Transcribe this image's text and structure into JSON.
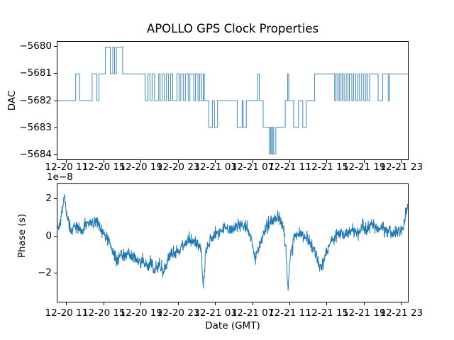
{
  "figure": {
    "title": "APOLLO GPS Clock Properties",
    "background_color": "#ffffff",
    "line_color": "#1f77b4",
    "axis_color": "#000000"
  },
  "chart_data": [
    {
      "type": "line",
      "style": "step",
      "subplot": "top",
      "title": "APOLLO GPS Clock Properties",
      "ylabel": "DAC",
      "ytick_labels": [
        "−5680",
        "−5681",
        "−5682",
        "−5683",
        "−5684"
      ],
      "ytick_values": [
        -5680,
        -5681,
        -5682,
        -5683,
        -5684
      ],
      "ylim": [
        -5684.2,
        -5679.8
      ],
      "grid": false,
      "legend": "none",
      "xtick_labels": [
        "12-20 11",
        "12-20 15",
        "12-20 19",
        "12-20 23",
        "12-21 03",
        "12-21 07",
        "12-21 11",
        "12-21 15",
        "12-21 19",
        "12-21 23"
      ],
      "steps_x_fraction_value": [
        [
          0.0,
          -5682
        ],
        [
          0.052,
          -5681
        ],
        [
          0.063,
          -5682
        ],
        [
          0.099,
          -5681
        ],
        [
          0.112,
          -5682
        ],
        [
          0.118,
          -5681
        ],
        [
          0.137,
          -5680
        ],
        [
          0.151,
          -5681
        ],
        [
          0.158,
          -5680
        ],
        [
          0.163,
          -5681
        ],
        [
          0.168,
          -5680
        ],
        [
          0.186,
          -5681
        ],
        [
          0.25,
          -5682
        ],
        [
          0.258,
          -5681
        ],
        [
          0.264,
          -5682
        ],
        [
          0.27,
          -5681
        ],
        [
          0.277,
          -5682
        ],
        [
          0.289,
          -5681
        ],
        [
          0.293,
          -5682
        ],
        [
          0.299,
          -5681
        ],
        [
          0.305,
          -5682
        ],
        [
          0.311,
          -5681
        ],
        [
          0.317,
          -5682
        ],
        [
          0.323,
          -5681
        ],
        [
          0.329,
          -5682
        ],
        [
          0.341,
          -5681
        ],
        [
          0.347,
          -5682
        ],
        [
          0.352,
          -5681
        ],
        [
          0.359,
          -5682
        ],
        [
          0.365,
          -5681
        ],
        [
          0.373,
          -5682
        ],
        [
          0.378,
          -5681
        ],
        [
          0.389,
          -5682
        ],
        [
          0.394,
          -5681
        ],
        [
          0.401,
          -5682
        ],
        [
          0.406,
          -5681
        ],
        [
          0.411,
          -5682
        ],
        [
          0.416,
          -5681
        ],
        [
          0.419,
          -5682
        ],
        [
          0.432,
          -5683
        ],
        [
          0.442,
          -5682
        ],
        [
          0.448,
          -5683
        ],
        [
          0.457,
          -5682
        ],
        [
          0.513,
          -5683
        ],
        [
          0.527,
          -5682
        ],
        [
          0.53,
          -5683
        ],
        [
          0.539,
          -5682
        ],
        [
          0.571,
          -5681
        ],
        [
          0.576,
          -5682
        ],
        [
          0.587,
          -5683
        ],
        [
          0.605,
          -5684
        ],
        [
          0.608,
          -5683
        ],
        [
          0.611,
          -5684
        ],
        [
          0.614,
          -5683
        ],
        [
          0.617,
          -5684
        ],
        [
          0.623,
          -5683
        ],
        [
          0.65,
          -5682
        ],
        [
          0.657,
          -5681
        ],
        [
          0.66,
          -5682
        ],
        [
          0.674,
          -5683
        ],
        [
          0.688,
          -5682
        ],
        [
          0.7,
          -5683
        ],
        [
          0.71,
          -5682
        ],
        [
          0.734,
          -5681
        ],
        [
          0.791,
          -5682
        ],
        [
          0.795,
          -5681
        ],
        [
          0.8,
          -5682
        ],
        [
          0.804,
          -5681
        ],
        [
          0.809,
          -5682
        ],
        [
          0.813,
          -5681
        ],
        [
          0.818,
          -5682
        ],
        [
          0.824,
          -5681
        ],
        [
          0.829,
          -5682
        ],
        [
          0.833,
          -5681
        ],
        [
          0.84,
          -5682
        ],
        [
          0.845,
          -5681
        ],
        [
          0.851,
          -5682
        ],
        [
          0.857,
          -5681
        ],
        [
          0.862,
          -5682
        ],
        [
          0.868,
          -5681
        ],
        [
          0.874,
          -5682
        ],
        [
          0.88,
          -5681
        ],
        [
          0.885,
          -5682
        ],
        [
          0.891,
          -5681
        ],
        [
          0.915,
          -5682
        ],
        [
          0.928,
          -5681
        ],
        [
          0.944,
          -5682
        ],
        [
          0.948,
          -5681
        ]
      ]
    },
    {
      "type": "line",
      "style": "noisy",
      "subplot": "bottom",
      "ylabel": "Phase (s)",
      "xlabel": "Date (GMT)",
      "offset_text": "1e−8",
      "ytick_labels": [
        "2",
        "0",
        "−2"
      ],
      "ytick_values": [
        2,
        0,
        -2
      ],
      "ylim": [
        -3.59,
        2.84
      ],
      "grid": false,
      "legend": "none",
      "xtick_labels": [
        "12-20 11",
        "12-20 15",
        "12-20 19",
        "12-20 23",
        "12-21 03",
        "12-21 07",
        "12-21 11",
        "12-21 15",
        "12-21 19",
        "12-21 23"
      ],
      "units": "1e-8 s",
      "keypoints_x_fraction_value": [
        [
          0.0,
          0.4
        ],
        [
          0.01,
          0.9
        ],
        [
          0.02,
          2.3
        ],
        [
          0.028,
          0.9
        ],
        [
          0.04,
          0.3
        ],
        [
          0.055,
          0.55
        ],
        [
          0.07,
          0.25
        ],
        [
          0.085,
          0.65
        ],
        [
          0.1,
          0.7
        ],
        [
          0.115,
          0.85
        ],
        [
          0.125,
          0.3
        ],
        [
          0.14,
          -0.1
        ],
        [
          0.15,
          -0.45
        ],
        [
          0.16,
          -1.0
        ],
        [
          0.17,
          -1.35
        ],
        [
          0.18,
          -0.9
        ],
        [
          0.19,
          -1.1
        ],
        [
          0.2,
          -0.85
        ],
        [
          0.21,
          -1.2
        ],
        [
          0.22,
          -1.05
        ],
        [
          0.232,
          -1.5
        ],
        [
          0.245,
          -1.3
        ],
        [
          0.258,
          -1.75
        ],
        [
          0.268,
          -1.4
        ],
        [
          0.278,
          -1.9
        ],
        [
          0.29,
          -1.5
        ],
        [
          0.302,
          -2.05
        ],
        [
          0.312,
          -1.35
        ],
        [
          0.325,
          -1.0
        ],
        [
          0.34,
          -0.85
        ],
        [
          0.355,
          -0.55
        ],
        [
          0.37,
          -0.35
        ],
        [
          0.385,
          -0.15
        ],
        [
          0.398,
          -0.45
        ],
        [
          0.41,
          -0.7
        ],
        [
          0.4165,
          -2.9
        ],
        [
          0.423,
          -0.9
        ],
        [
          0.435,
          -0.3
        ],
        [
          0.45,
          0.05
        ],
        [
          0.465,
          0.3
        ],
        [
          0.48,
          0.45
        ],
        [
          0.495,
          0.3
        ],
        [
          0.51,
          0.5
        ],
        [
          0.525,
          0.65
        ],
        [
          0.54,
          0.4
        ],
        [
          0.553,
          -0.2
        ],
        [
          0.565,
          -1.25
        ],
        [
          0.578,
          -0.35
        ],
        [
          0.59,
          0.3
        ],
        [
          0.605,
          0.7
        ],
        [
          0.62,
          0.95
        ],
        [
          0.632,
          1.05
        ],
        [
          0.645,
          0.4
        ],
        [
          0.652,
          -0.8
        ],
        [
          0.6575,
          -2.95
        ],
        [
          0.664,
          -1.1
        ],
        [
          0.675,
          -0.1
        ],
        [
          0.69,
          0.15
        ],
        [
          0.705,
          0.1
        ],
        [
          0.718,
          -0.25
        ],
        [
          0.73,
          -0.7
        ],
        [
          0.742,
          -1.35
        ],
        [
          0.752,
          -1.8
        ],
        [
          0.763,
          -1.1
        ],
        [
          0.775,
          -0.5
        ],
        [
          0.788,
          -0.15
        ],
        [
          0.8,
          0.1
        ],
        [
          0.815,
          0.2
        ],
        [
          0.83,
          0.15
        ],
        [
          0.845,
          0.35
        ],
        [
          0.858,
          0.2
        ],
        [
          0.87,
          0.45
        ],
        [
          0.882,
          0.3
        ],
        [
          0.895,
          0.8
        ],
        [
          0.905,
          0.55
        ],
        [
          0.915,
          0.35
        ],
        [
          0.925,
          0.5
        ],
        [
          0.935,
          0.25
        ],
        [
          0.945,
          0.35
        ],
        [
          0.955,
          0.15
        ],
        [
          0.965,
          0.3
        ],
        [
          0.975,
          0.1
        ],
        [
          0.985,
          0.35
        ],
        [
          1.0,
          1.7
        ]
      ],
      "noise": {
        "seed": 42,
        "amplitude": 0.3,
        "points": 1300
      }
    }
  ]
}
